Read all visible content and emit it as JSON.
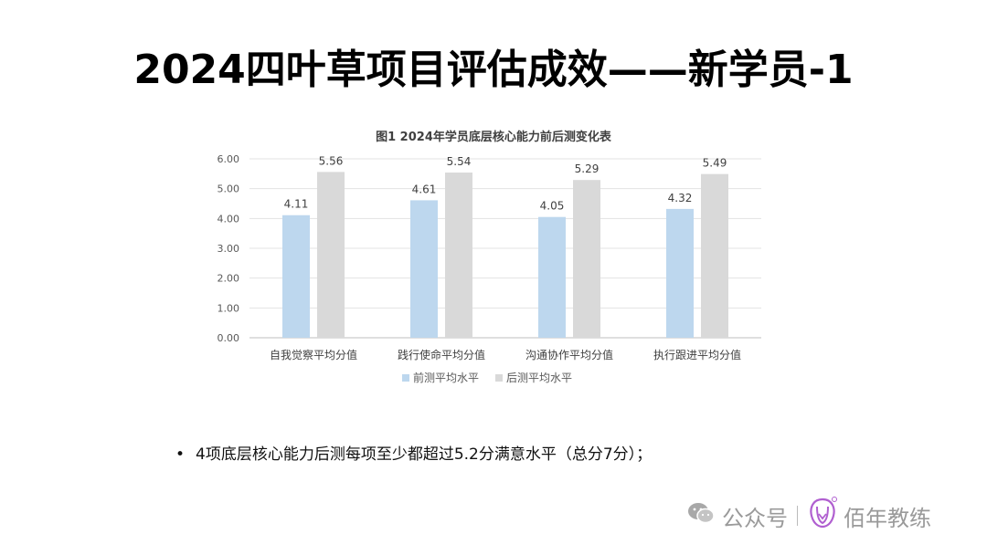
{
  "slide": {
    "title": "2024四叶草项目评估成效——新学员-1",
    "bullet": "4项底层核心能力后测每项至少都超过5.2分满意水平（总分7分）；",
    "bullet_marker": "•"
  },
  "watermark": {
    "account_label": "公众号",
    "brand": "佰年教练",
    "icon": "wechat-icon",
    "logo_icon": "brand-logo-icon"
  },
  "chart_data": {
    "type": "bar",
    "title": "图1 2024年学员底层核心能力前后测变化表",
    "categories": [
      "自我觉察平均分值",
      "践行使命平均分值",
      "沟通协作平均分值",
      "执行跟进平均分值"
    ],
    "series": [
      {
        "name": "前测平均水平",
        "values": [
          4.11,
          4.61,
          4.05,
          4.32
        ],
        "color": "#bdd7ee"
      },
      {
        "name": "后测平均水平",
        "values": [
          5.56,
          5.54,
          5.29,
          5.49
        ],
        "color": "#d9d9d9"
      }
    ],
    "y_ticks": [
      "0.00",
      "1.00",
      "2.00",
      "3.00",
      "4.00",
      "5.00",
      "6.00"
    ],
    "ylim": [
      0,
      6
    ],
    "grid": true,
    "legend_position": "bottom",
    "data_labels": true
  }
}
